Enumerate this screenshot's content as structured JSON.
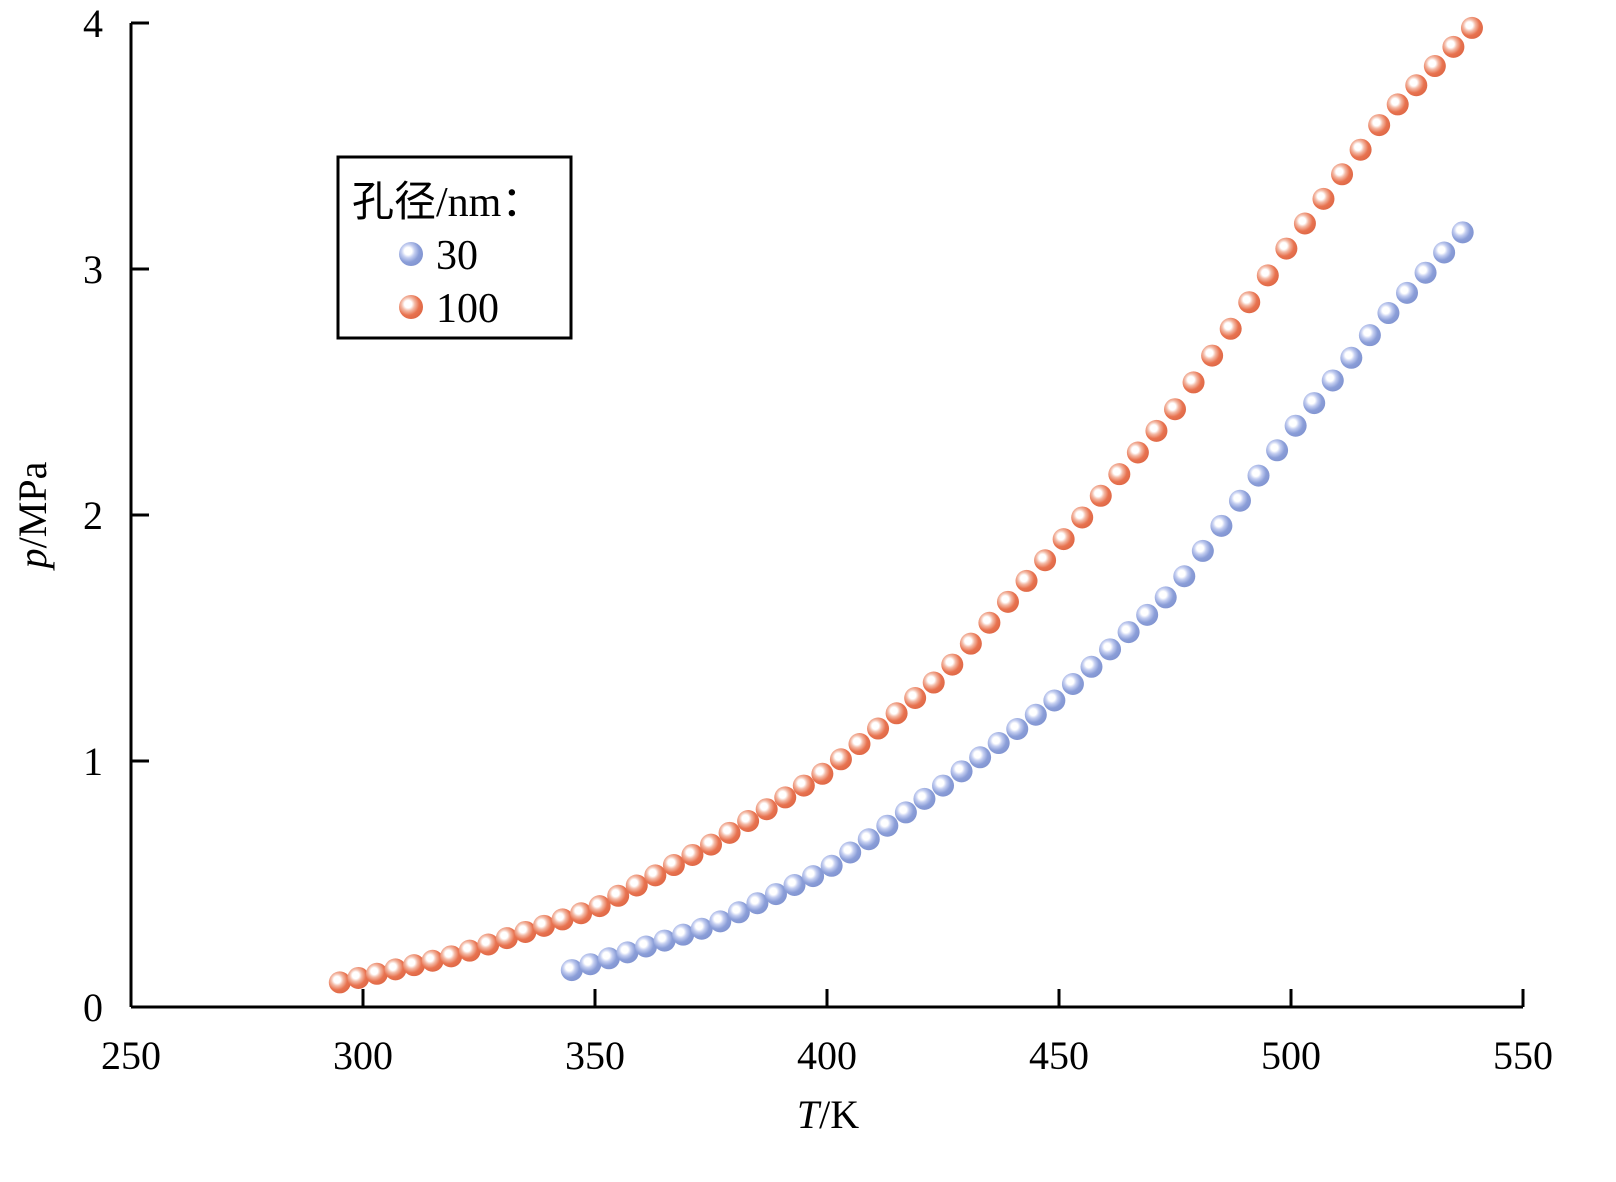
{
  "chart_data": {
    "type": "scatter",
    "title": "",
    "xlabel": {
      "italic": "T",
      "rest": "/K"
    },
    "ylabel": {
      "italic": "p",
      "rest": "/MPa"
    },
    "xlim": [
      250,
      550
    ],
    "ylim": [
      0,
      4
    ],
    "xticks": [
      250,
      300,
      350,
      400,
      450,
      500,
      550
    ],
    "yticks": [
      0,
      1,
      2,
      3,
      4
    ],
    "grid": false,
    "legend": {
      "title": "孔径/nm：",
      "placement": "top-left"
    },
    "series": [
      {
        "name": "30",
        "color": "#8B9ED8",
        "x": [
          345,
          349,
          353,
          357,
          361,
          365,
          369,
          373,
          377,
          381,
          385,
          389,
          393,
          397,
          401,
          405,
          409,
          413,
          417,
          421,
          425,
          429,
          433,
          437,
          441,
          445,
          449,
          453,
          457,
          461,
          465,
          469,
          473,
          477,
          481,
          485,
          489,
          493,
          497,
          501,
          505,
          509,
          513,
          517,
          521,
          525,
          529,
          533,
          537
        ],
        "y": [
          0.15,
          0.174,
          0.198,
          0.222,
          0.246,
          0.27,
          0.294,
          0.318,
          0.348,
          0.385,
          0.422,
          0.459,
          0.496,
          0.532,
          0.574,
          0.628,
          0.682,
          0.737,
          0.791,
          0.846,
          0.9,
          0.958,
          1.015,
          1.073,
          1.13,
          1.188,
          1.246,
          1.313,
          1.383,
          1.454,
          1.524,
          1.594,
          1.665,
          1.751,
          1.854,
          1.956,
          2.058,
          2.16,
          2.263,
          2.363,
          2.455,
          2.547,
          2.639,
          2.731,
          2.821,
          2.903,
          2.985,
          3.067,
          3.149
        ]
      },
      {
        "name": "100",
        "color": "#E87350",
        "x": [
          295,
          299,
          303,
          307,
          311,
          315,
          319,
          323,
          327,
          331,
          335,
          339,
          343,
          347,
          351,
          355,
          359,
          363,
          367,
          371,
          375,
          379,
          383,
          387,
          391,
          395,
          399,
          403,
          407,
          411,
          415,
          419,
          423,
          427,
          431,
          435,
          439,
          443,
          447,
          451,
          455,
          459,
          463,
          467,
          471,
          475,
          479,
          483,
          487,
          491,
          495,
          499,
          503,
          507,
          511,
          515,
          519,
          523,
          527,
          531,
          535,
          539
        ],
        "y": [
          0.1,
          0.118,
          0.135,
          0.153,
          0.17,
          0.188,
          0.206,
          0.229,
          0.254,
          0.28,
          0.305,
          0.33,
          0.356,
          0.381,
          0.41,
          0.452,
          0.494,
          0.535,
          0.577,
          0.618,
          0.66,
          0.708,
          0.756,
          0.804,
          0.852,
          0.9,
          0.948,
          1.007,
          1.069,
          1.132,
          1.194,
          1.256,
          1.319,
          1.392,
          1.477,
          1.562,
          1.647,
          1.732,
          1.816,
          1.902,
          1.99,
          2.078,
          2.166,
          2.254,
          2.342,
          2.43,
          2.539,
          2.648,
          2.757,
          2.865,
          2.974,
          3.083,
          3.185,
          3.285,
          3.385,
          3.485,
          3.585,
          3.669,
          3.747,
          3.825,
          3.903,
          3.98
        ]
      }
    ]
  }
}
